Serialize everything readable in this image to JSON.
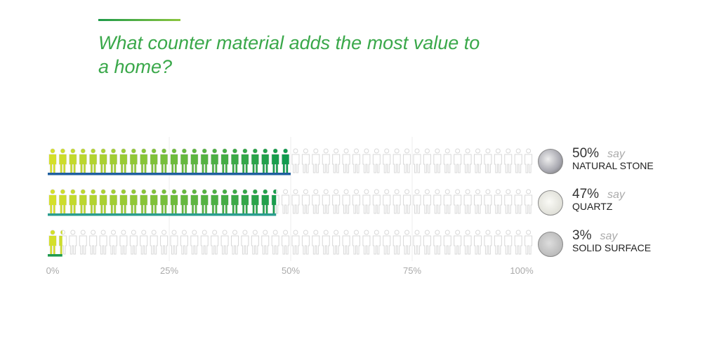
{
  "title": "What counter material adds the most value to a home?",
  "chart_data": {
    "type": "bar",
    "title": "What counter material adds the most value to a home?",
    "categories": [
      "NATURAL STONE",
      "QUARTZ",
      "SOLID SURFACE"
    ],
    "values": [
      50,
      47,
      3
    ],
    "value_labels": [
      "50%",
      "47%",
      "3%"
    ],
    "suffix": "say",
    "xlim": [
      0,
      100
    ],
    "x_ticks": [
      "0%",
      "25%",
      "50%",
      "75%",
      "100%"
    ],
    "grid": true,
    "bar_colors": [
      "#1f5f9f",
      "#2a9d8f",
      "#1f9a4f"
    ],
    "icon_gradient": [
      "#d4df2a",
      "#129a4f"
    ]
  }
}
